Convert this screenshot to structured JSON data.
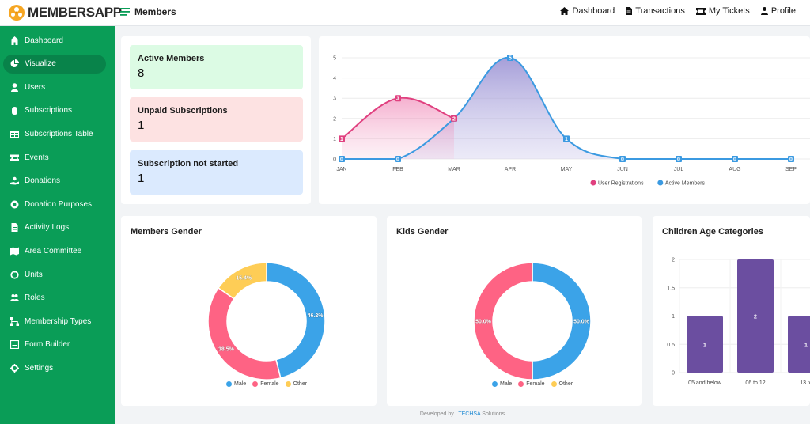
{
  "app": {
    "logo_text": "MEMBERSAPP",
    "page_title": "Members"
  },
  "topnav": [
    {
      "label": "Dashboard",
      "icon": "home-icon"
    },
    {
      "label": "Transactions",
      "icon": "document-icon"
    },
    {
      "label": "My Tickets",
      "icon": "ticket-icon"
    },
    {
      "label": "Profile",
      "icon": "user-icon"
    }
  ],
  "sidebar": {
    "items": [
      {
        "label": "Dashboard",
        "icon": "home-icon",
        "active": false
      },
      {
        "label": "Visualize",
        "icon": "pie-chart-icon",
        "active": true
      },
      {
        "label": "Users",
        "icon": "user-icon",
        "active": false
      },
      {
        "label": "Subscriptions",
        "icon": "hand-icon",
        "active": false
      },
      {
        "label": "Subscriptions Table",
        "icon": "table-icon",
        "active": false
      },
      {
        "label": "Events",
        "icon": "ticket-icon",
        "active": false
      },
      {
        "label": "Donations",
        "icon": "donate-icon",
        "active": false
      },
      {
        "label": "Donation Purposes",
        "icon": "hand-holding-icon",
        "active": false
      },
      {
        "label": "Activity Logs",
        "icon": "file-icon",
        "active": false
      },
      {
        "label": "Area Committee",
        "icon": "map-icon",
        "active": false
      },
      {
        "label": "Units",
        "icon": "ring-icon",
        "active": false
      },
      {
        "label": "Roles",
        "icon": "users-icon",
        "active": false
      },
      {
        "label": "Membership Types",
        "icon": "sitemap-icon",
        "active": false
      },
      {
        "label": "Form Builder",
        "icon": "form-icon",
        "active": false
      },
      {
        "label": "Settings",
        "icon": "gear-icon",
        "active": false
      }
    ]
  },
  "stats": [
    {
      "label": "Active Members",
      "value": "8",
      "bg": "#dcfbe4"
    },
    {
      "label": "Unpaid Subscriptions",
      "value": "1",
      "bg": "#fde2e2"
    },
    {
      "label": "Subscription not started",
      "value": "1",
      "bg": "#dbeafe"
    }
  ],
  "colors": {
    "green": "#0a9d57",
    "pink": "#e0407f",
    "blue": "#3b9ae1",
    "male": "#3ba3e8",
    "female": "#fe6384",
    "other": "#fecd56",
    "bar": "#6b4ea0"
  },
  "charts": {
    "members_gender_title": "Members Gender",
    "kids_gender_title": "Kids Gender",
    "children_age_title": "Children Age Categories"
  },
  "chart_data": [
    {
      "type": "line",
      "categories": [
        "JAN",
        "FEB",
        "MAR",
        "APR",
        "MAY",
        "JUN",
        "JUL",
        "AUG",
        "SEP"
      ],
      "series": [
        {
          "name": "User Registrations",
          "values": [
            1,
            3,
            2,
            null,
            null,
            null,
            null,
            null,
            null
          ]
        },
        {
          "name": "Active Members",
          "values": [
            0,
            0,
            2,
            5,
            1,
            0,
            0,
            0,
            0
          ]
        }
      ],
      "ylim": [
        0,
        5
      ],
      "yticks": [
        0,
        1,
        2,
        3,
        4,
        5
      ],
      "legend": "bottom"
    },
    {
      "type": "pie",
      "title": "Members Gender",
      "labels": [
        "Male",
        "Female",
        "Other"
      ],
      "values": [
        46.2,
        38.5,
        15.4
      ],
      "value_labels": [
        "46.2%",
        "38.5%",
        "15.4%"
      ],
      "legend": "bottom"
    },
    {
      "type": "pie",
      "title": "Kids Gender",
      "labels": [
        "Male",
        "Female",
        "Other"
      ],
      "values": [
        50.0,
        50.0,
        0
      ],
      "value_labels": [
        "50.0%",
        "50.0%",
        ""
      ],
      "legend": "bottom"
    },
    {
      "type": "bar",
      "title": "Children Age Categories",
      "categories": [
        "05 and below",
        "06 to 12",
        "13 to"
      ],
      "values": [
        1,
        2,
        1
      ],
      "ylim": [
        0,
        2
      ],
      "yticks": [
        "0",
        "0.5",
        "1",
        "1.5",
        "2"
      ]
    }
  ],
  "footer": {
    "prefix": "Developed by |",
    "brand": "TECHSA",
    "suffix": "Solutions"
  }
}
